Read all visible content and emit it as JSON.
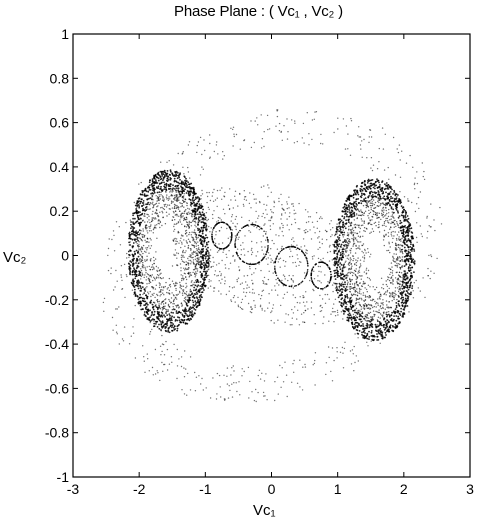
{
  "chart_data": {
    "type": "scatter",
    "title": "Phase Plane : ( Vᴄ₁ , Vᴄ₂ )",
    "xlabel": "Vᴄ₁",
    "ylabel": "Vᴄ₂",
    "xlim": [
      -3,
      3
    ],
    "ylim": [
      -1,
      1
    ],
    "xticks": [
      -3,
      -2,
      -1,
      0,
      1,
      2,
      3
    ],
    "yticks": [
      -1,
      -0.8,
      -0.6,
      -0.4,
      -0.2,
      0,
      0.2,
      0.4,
      0.6,
      0.8,
      1
    ],
    "xtick_labels": [
      "-3",
      "-2",
      "-1",
      "0",
      "1",
      "2",
      "3"
    ],
    "ytick_labels": [
      "-1",
      "-0.8",
      "-0.6",
      "-0.4",
      "-0.2",
      "0",
      "0.2",
      "0.4",
      "0.6",
      "0.8",
      "1"
    ],
    "grid": false,
    "legend": "none",
    "marker_color": "#000000",
    "series": [
      {
        "description": "double-scroll chaotic attractor trajectory",
        "x": [
          -1.6,
          -1.2,
          -0.8,
          -0.4,
          0.0,
          0.4,
          0.8,
          1.2,
          1.6,
          2.0,
          2.1,
          1.6,
          1.2,
          0.8,
          0.4,
          0.0,
          -0.4,
          -0.8,
          -1.2,
          -1.6,
          -2.0,
          -2.1,
          -1.6
        ],
        "y": [
          0.35,
          0.38,
          0.3,
          0.15,
          0.0,
          -0.15,
          -0.3,
          -0.38,
          -0.35,
          -0.2,
          0.0,
          0.3,
          0.34,
          0.22,
          0.05,
          0.0,
          -0.05,
          -0.22,
          -0.34,
          -0.3,
          -0.2,
          0.0,
          0.35
        ]
      },
      {
        "description": "outer sparse transient loop",
        "x": [
          -1.2,
          -2.3,
          -2.6,
          -2.4,
          -1.6,
          -0.4,
          1.0,
          2.0,
          2.5,
          2.3,
          1.6,
          0.4,
          -1.2
        ],
        "y": [
          0.6,
          0.3,
          -0.2,
          -0.6,
          -0.8,
          -0.83,
          -0.5,
          -0.2,
          0.3,
          0.7,
          0.82,
          0.84,
          0.6
        ]
      }
    ]
  }
}
